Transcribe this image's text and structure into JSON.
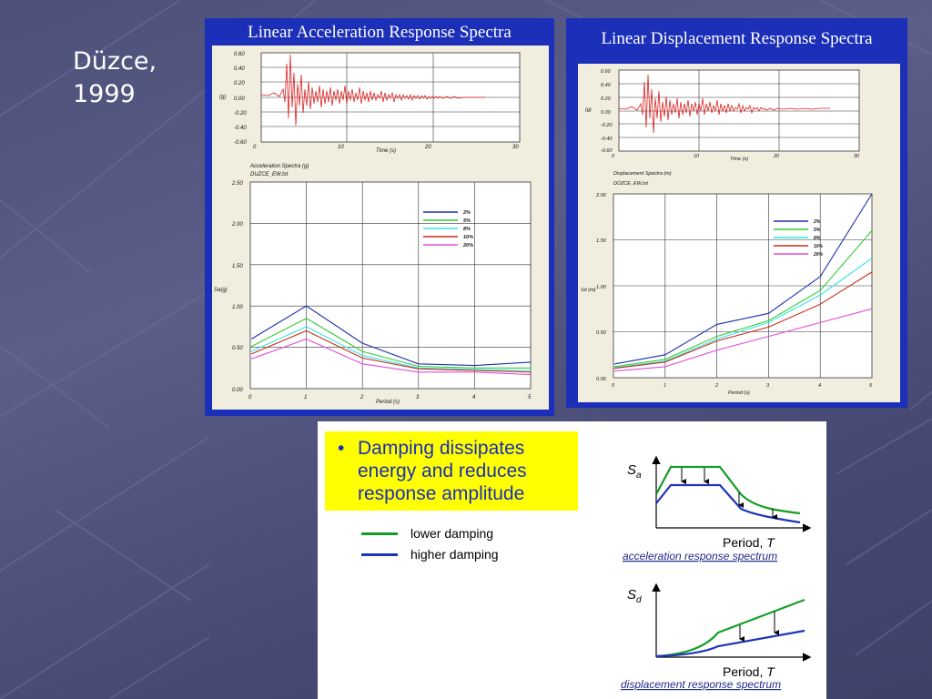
{
  "slide": {
    "title_line1": "Düzce,",
    "title_line2": "1999"
  },
  "panels": {
    "acceleration": {
      "title": "Linear Acceleration Response Spectra"
    },
    "displacement": {
      "title": "Linear Displacement Response Spectra"
    }
  },
  "time_history": {
    "y_ticks": [
      "0.60",
      "0.40",
      "0.20",
      "0.00",
      "-0.20",
      "-0.40",
      "-0.60"
    ],
    "x_ticks": [
      "0",
      "10",
      "20",
      "30"
    ],
    "y_label": "(g)",
    "x_label": "Time (s)"
  },
  "accel_spectra": {
    "header1": "Acceleration Spectra (g)",
    "header2": "DUZCE_EW.txt",
    "y_ticks": [
      "2.50",
      "2.00",
      "1.50",
      "1.00",
      "0.50",
      "0.00"
    ],
    "x_ticks": [
      "0",
      "1",
      "2",
      "3",
      "4",
      "5"
    ],
    "y_label": "Sa(g)",
    "x_label": "Period (s)"
  },
  "disp_spectra": {
    "header1": "Displacement Spectra (m)",
    "header2": "DÜZCE_EW.txt",
    "y_ticks": [
      "2.00",
      "1.50",
      "1.00",
      "0.50",
      "0.00"
    ],
    "x_ticks": [
      "0",
      "1",
      "2",
      "3",
      "4",
      "5"
    ],
    "y_label": "Sd (m)",
    "x_label": "Period (s)"
  },
  "damping_legend": [
    {
      "label": "2%",
      "color": "#1f2fb0"
    },
    {
      "label": "5%",
      "color": "#33cc33"
    },
    {
      "label": "8%",
      "color": "#33e6e6"
    },
    {
      "label": "10%",
      "color": "#cc2b1a"
    },
    {
      "label": "20%",
      "color": "#e04fd9"
    }
  ],
  "chart_data": [
    {
      "type": "line",
      "x": [
        1,
        2,
        3,
        4,
        5
      ],
      "series": [
        {
          "name": "2%",
          "values": [
            1.0,
            0.55,
            0.3,
            0.28,
            0.32
          ]
        },
        {
          "name": "5%",
          "values": [
            0.85,
            0.45,
            0.27,
            0.25,
            0.25
          ]
        },
        {
          "name": "8%",
          "values": [
            0.75,
            0.4,
            0.25,
            0.23,
            0.22
          ]
        },
        {
          "name": "10%",
          "values": [
            0.7,
            0.37,
            0.24,
            0.22,
            0.2
          ]
        },
        {
          "name": "20%",
          "values": [
            0.6,
            0.3,
            0.2,
            0.2,
            0.17
          ]
        }
      ],
      "xlabel": "Period (s)",
      "ylabel": "Sa(g)",
      "ylim": [
        0,
        2.5
      ],
      "xlim": [
        0,
        5
      ]
    },
    {
      "type": "line",
      "x": [
        1,
        2,
        3,
        4,
        5
      ],
      "series": [
        {
          "name": "2%",
          "values": [
            0.25,
            0.58,
            0.7,
            1.1,
            2.0
          ]
        },
        {
          "name": "5%",
          "values": [
            0.2,
            0.45,
            0.62,
            0.95,
            1.6
          ]
        },
        {
          "name": "8%",
          "values": [
            0.18,
            0.42,
            0.6,
            0.9,
            1.3
          ]
        },
        {
          "name": "10%",
          "values": [
            0.17,
            0.4,
            0.55,
            0.8,
            1.15
          ]
        },
        {
          "name": "20%",
          "values": [
            0.12,
            0.3,
            0.45,
            0.6,
            0.75
          ]
        }
      ],
      "xlabel": "Period (s)",
      "ylabel": "Sd (m)",
      "ylim": [
        0,
        2.0
      ],
      "xlim": [
        0,
        5
      ]
    }
  ],
  "concept": {
    "bullet_marker": "•",
    "bullet_lines": [
      "Damping dissipates",
      "energy and reduces",
      "response amplitude"
    ],
    "legend": [
      {
        "label": "lower damping",
        "color": "#169c25"
      },
      {
        "label": "higher damping",
        "color": "#1f35b8"
      }
    ],
    "accel_sketch": {
      "y_label_main": "S",
      "y_label_sub": "a",
      "x_label_prefix": "Period, ",
      "x_label_var": "T",
      "caption": "acceleration response spectrum"
    },
    "disp_sketch": {
      "y_label_main": "S",
      "y_label_sub": "d",
      "x_label_prefix": "Period, ",
      "x_label_var": "T",
      "caption": "displacement response spectrum"
    }
  }
}
